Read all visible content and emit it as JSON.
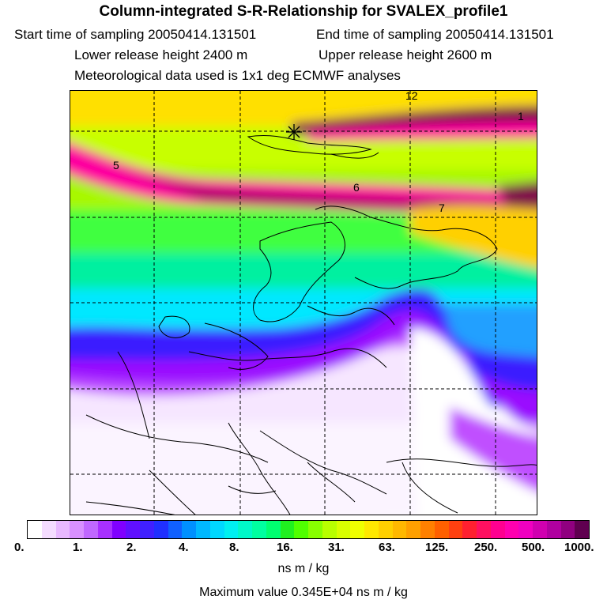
{
  "title": "Column-integrated S-R-Relationship for SVALEX_profile1",
  "start_label": "Start time of sampling 20050414.131501",
  "end_label": "End time of sampling 20050414.131501",
  "lower_label": "Lower release height 2400 m",
  "upper_label": "Upper release height 2600 m",
  "met_label": "Meteorological data used is 1x1 deg ECMWF analyses",
  "map_annotations": [
    "12",
    "1",
    "5",
    "6",
    "7"
  ],
  "colorbar": {
    "ticks": [
      "0.",
      "1.",
      "2.",
      "4.",
      "8.",
      "16.",
      "31.",
      "63.",
      "125.",
      "250.",
      "500.",
      "1000."
    ],
    "units": "ns m / kg"
  },
  "max_value_label": "Maximum value  0.345E+04 ns m / kg",
  "colors": {
    "pale": "#f4dcff",
    "violet": "#b000ff",
    "blue": "#3a1dff",
    "cyan": "#00f0f0",
    "green": "#00ff80",
    "yellowgreen": "#c8ff00",
    "yellow": "#ffe000",
    "orange": "#ff8000",
    "magenta": "#ff00a0",
    "purple": "#80104a"
  }
}
